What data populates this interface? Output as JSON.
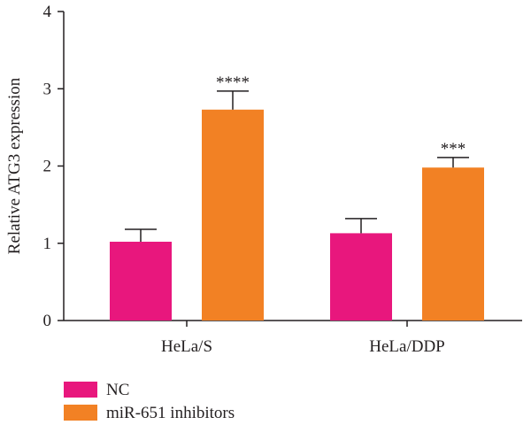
{
  "chart_data": {
    "type": "bar",
    "title": "",
    "xlabel": "",
    "ylabel": "Relative ATG3 expression",
    "ylim": [
      0,
      4
    ],
    "yticks": [
      0,
      1,
      2,
      3,
      4
    ],
    "categories": [
      "HeLa/S",
      "HeLa/DDP"
    ],
    "series": [
      {
        "name": "NC",
        "color": "#e8177d",
        "values": [
          1.02,
          1.13
        ],
        "errors": [
          0.16,
          0.19
        ]
      },
      {
        "name": "miR-651 inhibitors",
        "color": "#f28124",
        "values": [
          2.73,
          1.98
        ],
        "errors": [
          0.24,
          0.13
        ]
      }
    ],
    "significance": [
      {
        "category": "HeLa/S",
        "series": "miR-651 inhibitors",
        "label": "****"
      },
      {
        "category": "HeLa/DDP",
        "series": "miR-651 inhibitors",
        "label": "***"
      }
    ],
    "legend_position": "bottom-left",
    "grid": false
  }
}
